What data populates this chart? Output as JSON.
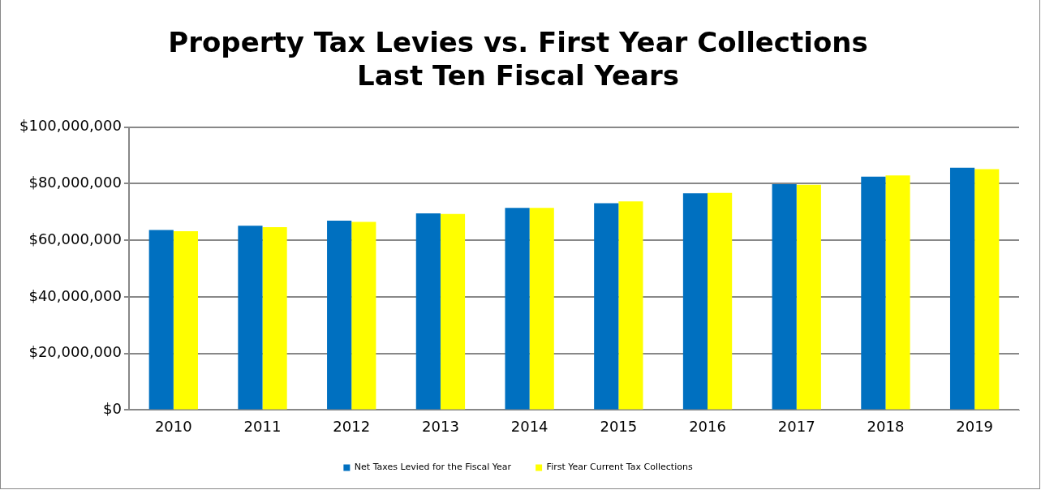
{
  "chart_data": {
    "type": "bar",
    "title": "Property Tax Levies vs. First Year Collections\nLast Ten Fiscal Years",
    "categories": [
      "2010",
      "2011",
      "2012",
      "2013",
      "2014",
      "2015",
      "2016",
      "2017",
      "2018",
      "2019"
    ],
    "series": [
      {
        "name": "Net Taxes Levied for the Fiscal Year",
        "color": "#0070c0",
        "values": [
          63600000,
          65100000,
          66900000,
          69500000,
          71400000,
          73100000,
          76600000,
          79800000,
          82500000,
          85600000
        ]
      },
      {
        "name": "First Year Current Tax Collections",
        "color": "#ffff00",
        "values": [
          63200000,
          64600000,
          66500000,
          69300000,
          71400000,
          73700000,
          76700000,
          79600000,
          82900000,
          85100000
        ]
      }
    ],
    "ylim": [
      0,
      100000000
    ],
    "yticks": [
      {
        "value": 0,
        "label": "$0"
      },
      {
        "value": 20000000,
        "label": "$20,000,000"
      },
      {
        "value": 40000000,
        "label": "$40,000,000"
      },
      {
        "value": 60000000,
        "label": "$60,000,000"
      },
      {
        "value": 80000000,
        "label": "$80,000,000"
      },
      {
        "value": 100000000,
        "label": "$100,000,000"
      }
    ],
    "grid": "y",
    "legend": "bottom"
  }
}
